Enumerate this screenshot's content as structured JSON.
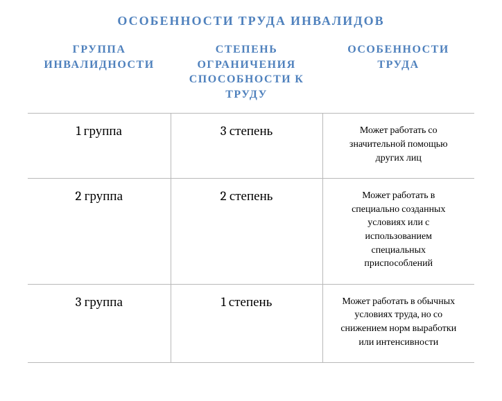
{
  "title": "ОСОБЕННОСТИ ТРУДА ИНВАЛИДОВ",
  "columns": [
    "ГРУППА ИНВАЛИДНОСТИ",
    "СТЕПЕНЬ ОГРАНИЧЕНИЯ СПОСОБНОСТИ К ТРУДУ",
    "ОСОБЕННОСТИ ТРУДА"
  ],
  "rows": [
    {
      "group": "1 группа",
      "degree": "3 степень",
      "feature": "Может работать со значительной помощью других лиц"
    },
    {
      "group": "2 группа",
      "degree": "2 степень",
      "feature": "Может работать в специально созданных условиях или с использованием специальных приспособлений"
    },
    {
      "group": "3 группа",
      "degree": "1 степень",
      "feature": "Может работать в обычных условиях труда, но со снижением норм выработки или интенсивности"
    }
  ],
  "styling": {
    "title_color": "#4f81bd",
    "header_color": "#4f81bd",
    "border_color": "#b8b8b8",
    "background_color": "#ffffff",
    "body_text_color": "#000000",
    "title_font_size": 18,
    "header_font_size": 16,
    "group_degree_font_size": 19,
    "feature_font_size": 14,
    "column_widths_pct": [
      32,
      34,
      34
    ]
  }
}
